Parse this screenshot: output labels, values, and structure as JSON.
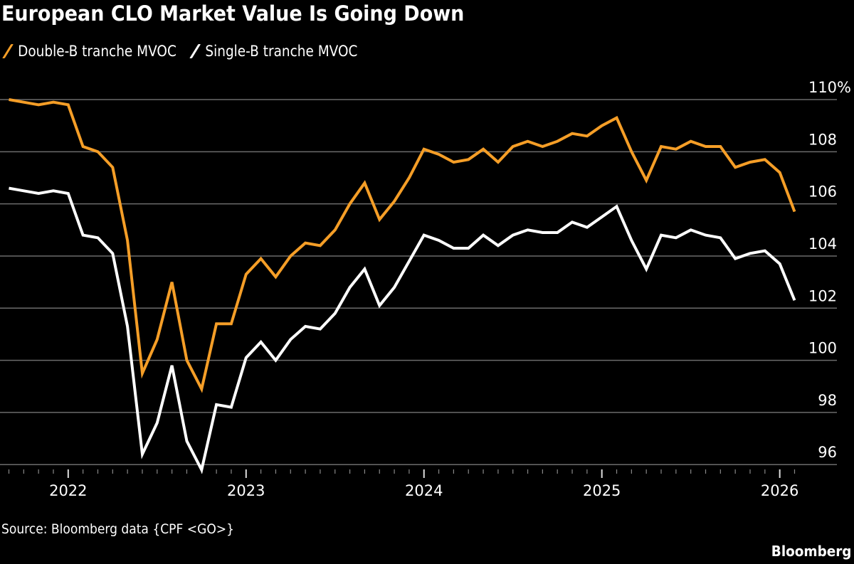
{
  "chart_data": {
    "type": "line",
    "title": "European CLO Market Value Is Going Down",
    "xlabel": "",
    "ylabel": "",
    "x_start": "2021-09",
    "x_end": "2026-02",
    "x_frequency": "monthly",
    "x_tick_labels": [
      "2022",
      "2023",
      "2024",
      "2025",
      "2026"
    ],
    "ylim": [
      95.7,
      110
    ],
    "y_ticks": [
      96,
      98,
      100,
      102,
      104,
      106,
      108,
      110
    ],
    "y_tick_labels": [
      "96",
      "98",
      "100",
      "102",
      "104",
      "106",
      "108",
      "110%"
    ],
    "y_axis_side": "right",
    "grid": true,
    "legend_position": "top-left",
    "series": [
      {
        "name": "Double-B tranche MVOC",
        "color": "#f59e27",
        "values": [
          110.0,
          109.9,
          109.8,
          109.9,
          109.8,
          108.2,
          108.0,
          107.4,
          104.6,
          99.5,
          100.8,
          103.0,
          100.0,
          98.9,
          101.4,
          101.4,
          103.3,
          103.9,
          103.2,
          104.0,
          104.5,
          104.4,
          105.0,
          106.0,
          106.8,
          105.4,
          106.1,
          107.0,
          108.1,
          107.9,
          107.6,
          107.7,
          108.1,
          107.6,
          108.2,
          108.4,
          108.2,
          108.4,
          108.7,
          108.6,
          109.0,
          109.3,
          108.0,
          106.9,
          108.2,
          108.1,
          108.4,
          108.2,
          108.2,
          107.4,
          107.6,
          107.7,
          107.2,
          105.7
        ]
      },
      {
        "name": "Single-B tranche MVOC",
        "color": "#ffffff",
        "values": [
          106.6,
          106.5,
          106.4,
          106.5,
          106.4,
          104.8,
          104.7,
          104.1,
          101.3,
          96.4,
          97.6,
          99.8,
          96.9,
          95.8,
          98.3,
          98.2,
          100.1,
          100.7,
          100.0,
          100.8,
          101.3,
          101.2,
          101.8,
          102.8,
          103.5,
          102.1,
          102.8,
          103.8,
          104.8,
          104.6,
          104.3,
          104.3,
          104.8,
          104.4,
          104.8,
          105.0,
          104.9,
          104.9,
          105.3,
          105.1,
          105.5,
          105.9,
          104.6,
          103.5,
          104.8,
          104.7,
          105.0,
          104.8,
          104.7,
          103.9,
          104.1,
          104.2,
          103.7,
          102.3
        ]
      }
    ]
  },
  "footer": {
    "source": "Source: Bloomberg data {CPF <GO>}",
    "brand": "Bloomberg"
  }
}
